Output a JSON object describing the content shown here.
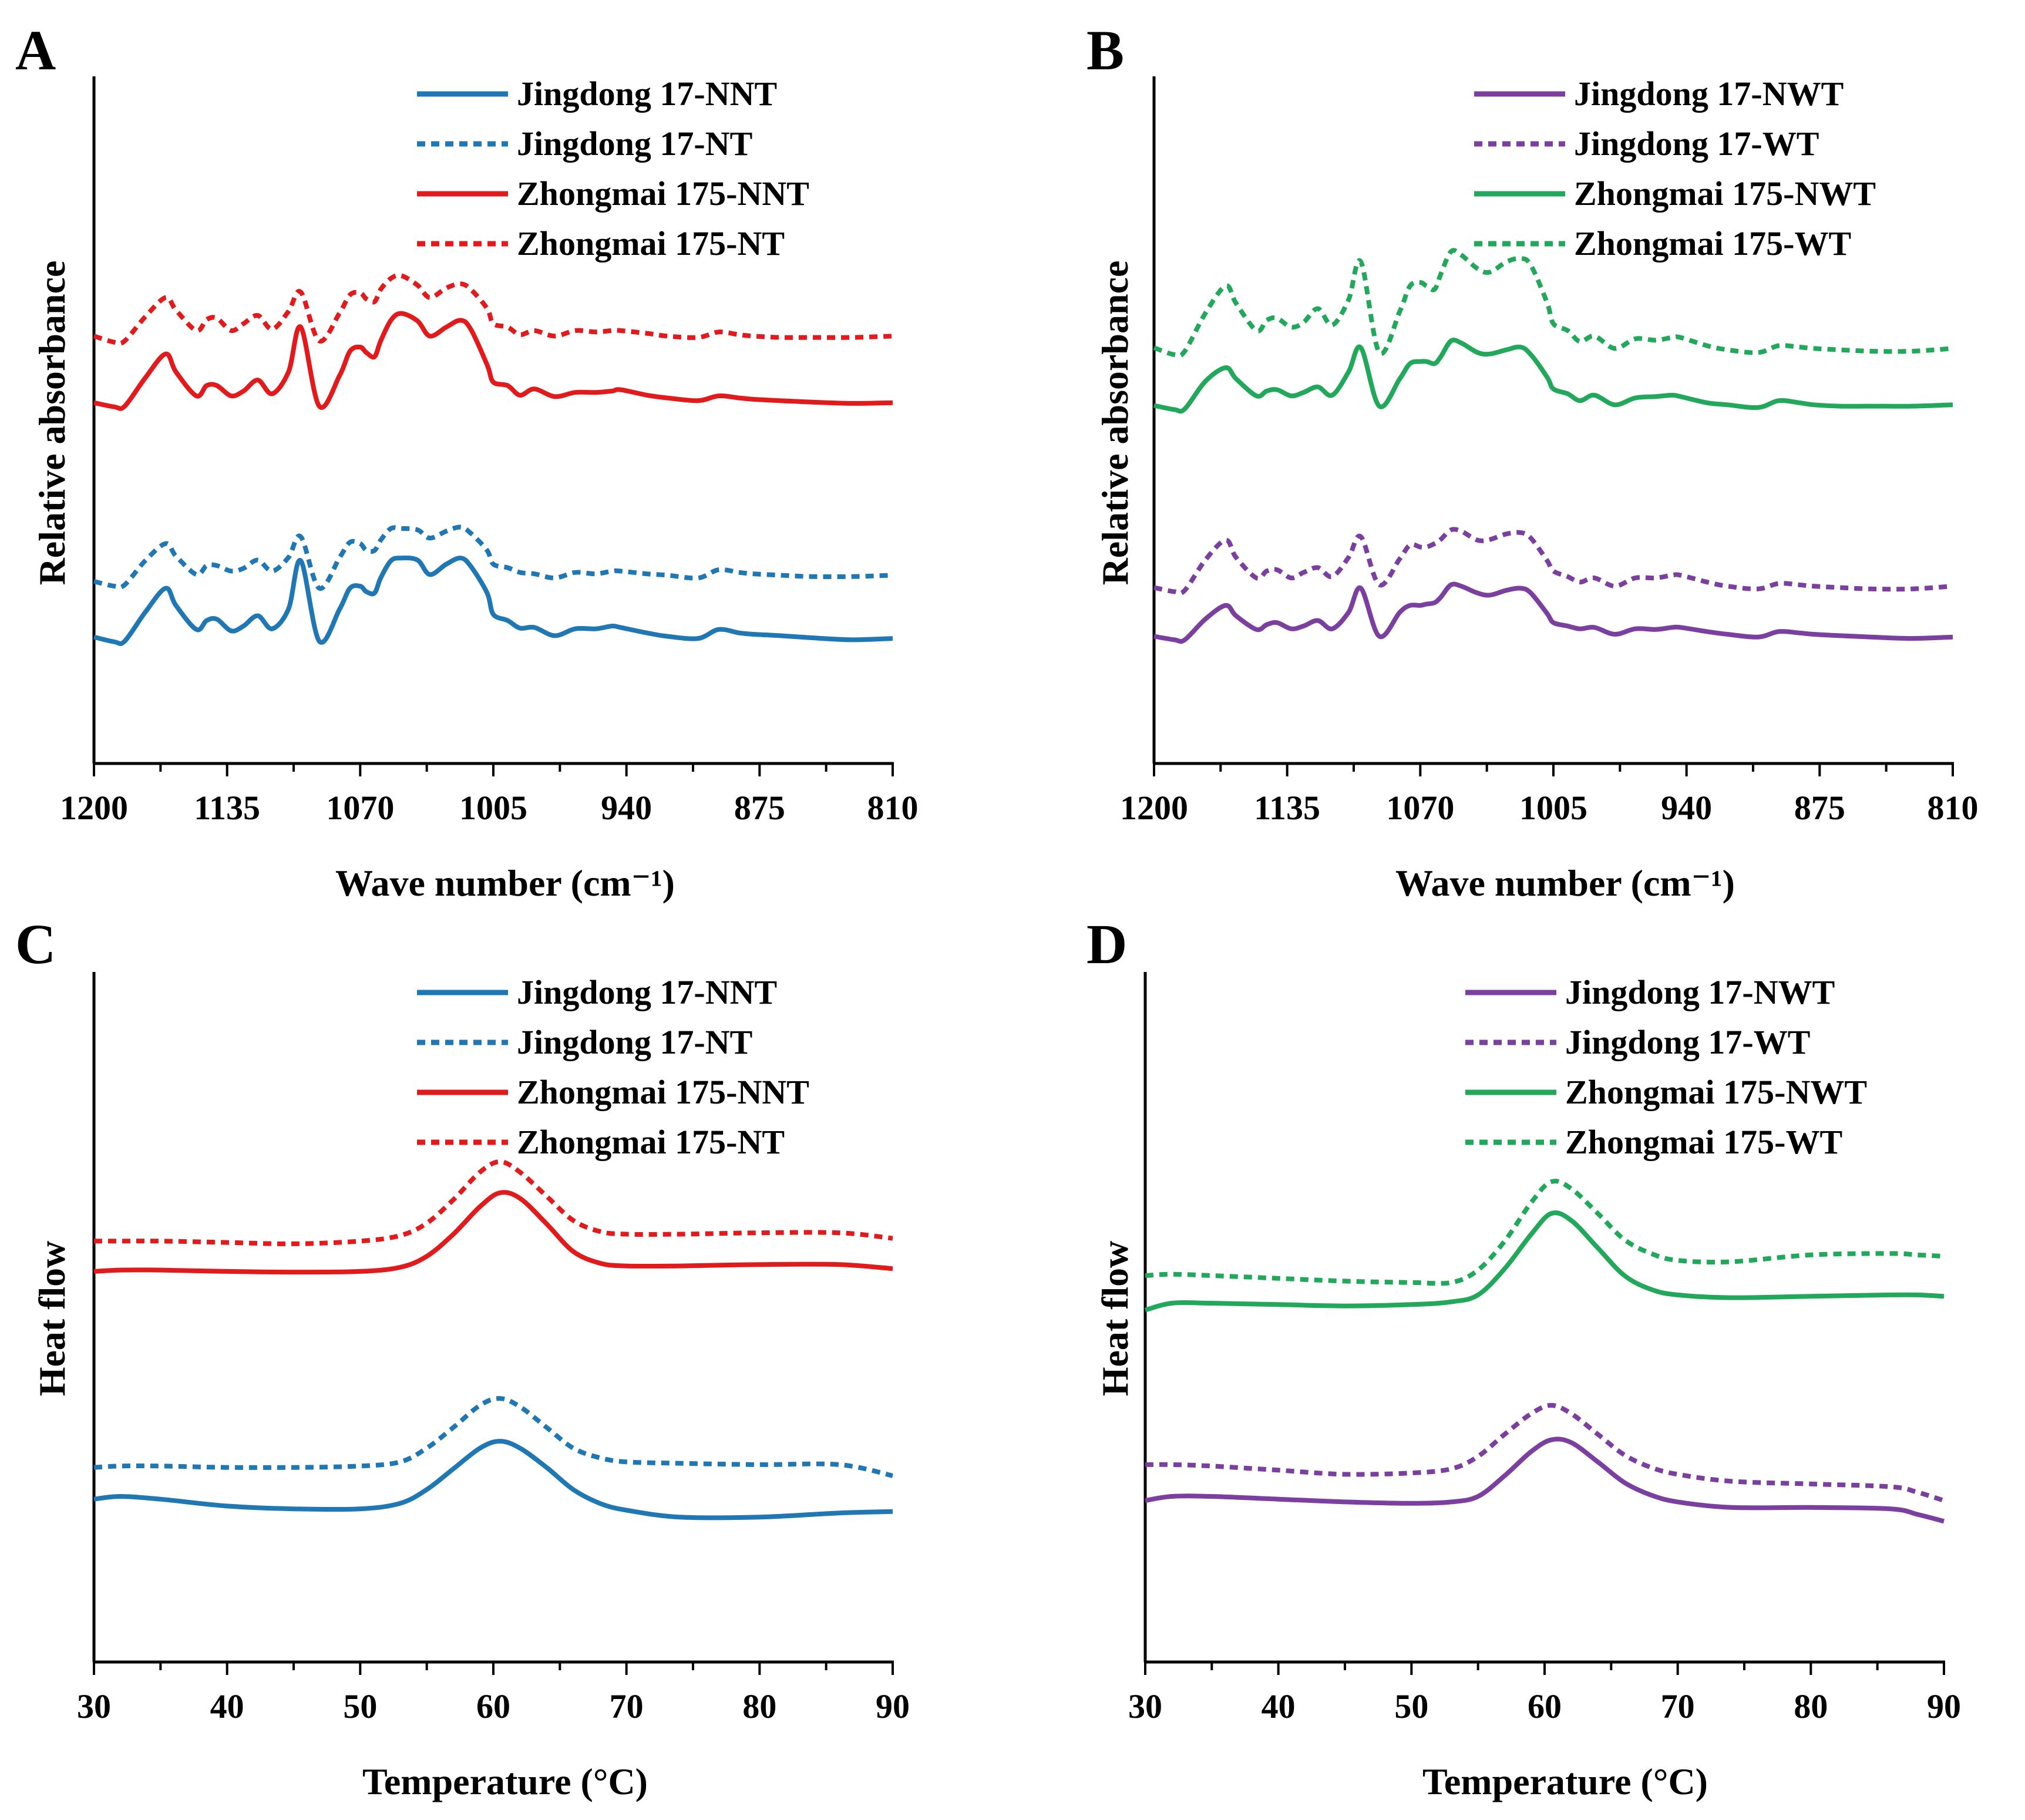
{
  "chart_data": [
    {
      "panel": "A",
      "type": "line",
      "xlabel": "Wave number (cm⁻¹)",
      "ylabel": "Relative absorbance",
      "xlim": [
        1200,
        810
      ],
      "x_ticks": [
        "1200",
        "1135",
        "1070",
        "1005",
        "940",
        "875",
        "810"
      ],
      "x_tick_values": [
        1200,
        1135,
        1070,
        1005,
        940,
        875,
        810
      ],
      "ylim": [
        0,
        10
      ],
      "y_ticks_shown": false,
      "legend_position": "top-right",
      "x": [
        1200,
        1190,
        1185,
        1175,
        1165,
        1160,
        1150,
        1145,
        1140,
        1133,
        1127,
        1120,
        1113,
        1105,
        1099,
        1090,
        1080,
        1075,
        1070,
        1067,
        1063,
        1060,
        1055,
        1050,
        1042,
        1036,
        1028,
        1021,
        1016,
        1008,
        1005,
        998,
        992,
        985,
        975,
        965,
        955,
        947,
        943,
        930,
        920,
        905,
        895,
        885,
        878,
        865,
        850,
        830,
        810
      ],
      "series": [
        {
          "name": "Jingdong 17-NNT",
          "color": "#1f77b4",
          "dash": "solid",
          "values": [
            1.84,
            1.77,
            1.78,
            2.2,
            2.55,
            2.3,
            1.95,
            2.08,
            2.1,
            1.93,
            2.0,
            2.15,
            1.96,
            2.25,
            2.95,
            1.78,
            2.25,
            2.55,
            2.58,
            2.5,
            2.48,
            2.7,
            2.95,
            2.99,
            2.96,
            2.75,
            2.9,
            2.99,
            2.87,
            2.48,
            2.17,
            2.08,
            1.97,
            1.98,
            1.86,
            1.96,
            1.96,
            2.0,
            1.98,
            1.9,
            1.85,
            1.82,
            1.95,
            1.9,
            1.88,
            1.86,
            1.83,
            1.8,
            1.82
          ]
        },
        {
          "name": "Jingdong 17-NT",
          "color": "#1f77b4",
          "dash": "dotted",
          "values": [
            2.65,
            2.58,
            2.6,
            2.95,
            3.2,
            3.02,
            2.75,
            2.88,
            2.88,
            2.8,
            2.84,
            2.96,
            2.8,
            3.0,
            3.3,
            2.55,
            3.0,
            3.22,
            3.2,
            3.1,
            3.1,
            3.25,
            3.42,
            3.42,
            3.4,
            3.28,
            3.38,
            3.44,
            3.35,
            3.1,
            2.9,
            2.85,
            2.78,
            2.76,
            2.7,
            2.78,
            2.76,
            2.8,
            2.8,
            2.76,
            2.74,
            2.7,
            2.82,
            2.78,
            2.76,
            2.74,
            2.72,
            2.72,
            2.74
          ]
        },
        {
          "name": "Zhongmai 175-NNT",
          "color": "#e31a1c",
          "dash": "solid",
          "values": [
            5.25,
            5.19,
            5.2,
            5.61,
            5.96,
            5.7,
            5.35,
            5.5,
            5.5,
            5.35,
            5.42,
            5.58,
            5.38,
            5.7,
            6.35,
            5.2,
            5.65,
            6.0,
            6.06,
            5.98,
            5.92,
            6.15,
            6.45,
            6.55,
            6.44,
            6.22,
            6.35,
            6.45,
            6.32,
            5.8,
            5.55,
            5.5,
            5.36,
            5.45,
            5.34,
            5.4,
            5.4,
            5.42,
            5.44,
            5.36,
            5.32,
            5.28,
            5.35,
            5.32,
            5.3,
            5.28,
            5.26,
            5.24,
            5.25
          ]
        },
        {
          "name": "Zhongmai 175-NT",
          "color": "#e31a1c",
          "dash": "dotted",
          "values": [
            6.22,
            6.13,
            6.15,
            6.5,
            6.78,
            6.6,
            6.3,
            6.46,
            6.48,
            6.3,
            6.4,
            6.52,
            6.32,
            6.58,
            6.86,
            6.15,
            6.56,
            6.82,
            6.85,
            6.76,
            6.72,
            6.9,
            7.06,
            7.1,
            6.96,
            6.78,
            6.92,
            6.98,
            6.9,
            6.62,
            6.4,
            6.35,
            6.24,
            6.3,
            6.22,
            6.3,
            6.28,
            6.3,
            6.3,
            6.26,
            6.22,
            6.2,
            6.28,
            6.24,
            6.22,
            6.2,
            6.2,
            6.2,
            6.22
          ]
        }
      ]
    },
    {
      "panel": "B",
      "type": "line",
      "xlabel": "Wave number (cm⁻¹)",
      "ylabel": "Relative absorbance",
      "xlim": [
        1200,
        810
      ],
      "x_ticks": [
        "1200",
        "1135",
        "1070",
        "1005",
        "940",
        "875",
        "810"
      ],
      "x_tick_values": [
        1200,
        1135,
        1070,
        1005,
        940,
        875,
        810
      ],
      "ylim": [
        0,
        10
      ],
      "y_ticks_shown": false,
      "legend_position": "top-right",
      "x": [
        1200,
        1190,
        1185,
        1175,
        1165,
        1160,
        1150,
        1145,
        1140,
        1133,
        1127,
        1120,
        1113,
        1105,
        1099,
        1090,
        1080,
        1075,
        1070,
        1067,
        1063,
        1060,
        1055,
        1050,
        1042,
        1036,
        1028,
        1021,
        1016,
        1008,
        1005,
        998,
        992,
        985,
        975,
        965,
        955,
        947,
        943,
        930,
        920,
        905,
        895,
        885,
        878,
        865,
        850,
        830,
        810
      ],
      "series": [
        {
          "name": "Jingdong 17-NWT",
          "color": "#7b3fa0",
          "dash": "solid",
          "values": [
            1.85,
            1.8,
            1.8,
            2.1,
            2.3,
            2.15,
            1.95,
            2.02,
            2.05,
            1.96,
            2.0,
            2.08,
            1.96,
            2.2,
            2.55,
            1.85,
            2.2,
            2.3,
            2.3,
            2.32,
            2.34,
            2.42,
            2.6,
            2.58,
            2.48,
            2.45,
            2.52,
            2.55,
            2.48,
            2.18,
            2.05,
            2.0,
            1.96,
            1.98,
            1.88,
            1.96,
            1.95,
            1.98,
            1.98,
            1.92,
            1.88,
            1.84,
            1.92,
            1.9,
            1.88,
            1.86,
            1.84,
            1.82,
            1.84
          ]
        },
        {
          "name": "Jingdong 17-WT",
          "color": "#7b3fa0",
          "dash": "dotted",
          "values": [
            2.56,
            2.5,
            2.52,
            2.96,
            3.25,
            3.0,
            2.7,
            2.8,
            2.82,
            2.7,
            2.78,
            2.85,
            2.72,
            3.0,
            3.3,
            2.6,
            2.98,
            3.18,
            3.15,
            3.15,
            3.2,
            3.26,
            3.4,
            3.38,
            3.25,
            3.26,
            3.34,
            3.36,
            3.28,
            2.95,
            2.8,
            2.72,
            2.64,
            2.7,
            2.58,
            2.7,
            2.7,
            2.74,
            2.74,
            2.64,
            2.58,
            2.54,
            2.62,
            2.6,
            2.58,
            2.56,
            2.54,
            2.54,
            2.58
          ]
        },
        {
          "name": "Zhongmai 175-NWT",
          "color": "#22a85a",
          "dash": "solid",
          "values": [
            5.21,
            5.15,
            5.16,
            5.56,
            5.76,
            5.6,
            5.35,
            5.42,
            5.44,
            5.35,
            5.4,
            5.48,
            5.36,
            5.7,
            6.05,
            5.2,
            5.6,
            5.82,
            5.85,
            5.85,
            5.82,
            5.92,
            6.15,
            6.12,
            5.98,
            5.96,
            6.02,
            6.06,
            5.95,
            5.62,
            5.45,
            5.38,
            5.28,
            5.36,
            5.22,
            5.32,
            5.34,
            5.36,
            5.34,
            5.25,
            5.22,
            5.18,
            5.28,
            5.25,
            5.22,
            5.2,
            5.2,
            5.2,
            5.22
          ]
        },
        {
          "name": "Zhongmai 175-WT",
          "color": "#22a85a",
          "dash": "dotted",
          "values": [
            6.05,
            5.95,
            6.0,
            6.55,
            6.95,
            6.7,
            6.3,
            6.45,
            6.48,
            6.35,
            6.42,
            6.62,
            6.38,
            6.75,
            7.3,
            5.98,
            6.58,
            6.95,
            7.0,
            6.95,
            6.9,
            7.12,
            7.45,
            7.4,
            7.2,
            7.15,
            7.3,
            7.35,
            7.25,
            6.7,
            6.4,
            6.3,
            6.14,
            6.22,
            6.04,
            6.18,
            6.16,
            6.2,
            6.2,
            6.08,
            6.02,
            5.98,
            6.08,
            6.06,
            6.04,
            6.02,
            6.0,
            6.0,
            6.04
          ]
        }
      ]
    },
    {
      "panel": "C",
      "type": "line",
      "xlabel": "Temperature (°C)",
      "ylabel": "Heat flow",
      "xlim": [
        30,
        90
      ],
      "x_ticks": [
        "30",
        "40",
        "50",
        "60",
        "70",
        "80",
        "90"
      ],
      "x_tick_values": [
        30,
        40,
        50,
        60,
        70,
        80,
        90
      ],
      "ylim": [
        0,
        10
      ],
      "y_ticks_shown": false,
      "legend_position": "top-right",
      "x": [
        30,
        32,
        35,
        40,
        45,
        50,
        53,
        55,
        57,
        59,
        60.5,
        62,
        64,
        66,
        68,
        70,
        74,
        80,
        86,
        90
      ],
      "series": [
        {
          "name": "Jingdong 17-NNT",
          "color": "#1f77b4",
          "dash": "solid",
          "values": [
            2.36,
            2.4,
            2.36,
            2.26,
            2.22,
            2.22,
            2.3,
            2.5,
            2.8,
            3.1,
            3.2,
            3.1,
            2.82,
            2.5,
            2.3,
            2.2,
            2.1,
            2.1,
            2.16,
            2.18
          ]
        },
        {
          "name": "Jingdong 17-NT",
          "color": "#1f77b4",
          "dash": "dotted",
          "values": [
            2.82,
            2.84,
            2.84,
            2.82,
            2.82,
            2.84,
            2.9,
            3.1,
            3.4,
            3.72,
            3.82,
            3.7,
            3.4,
            3.1,
            2.96,
            2.9,
            2.88,
            2.86,
            2.86,
            2.7
          ]
        },
        {
          "name": "Zhongmai 175-NNT",
          "color": "#e31a1c",
          "dash": "solid",
          "values": [
            5.66,
            5.68,
            5.68,
            5.66,
            5.65,
            5.66,
            5.72,
            5.88,
            6.2,
            6.6,
            6.8,
            6.72,
            6.35,
            5.95,
            5.78,
            5.74,
            5.74,
            5.76,
            5.76,
            5.7
          ]
        },
        {
          "name": "Zhongmai 175-NT",
          "color": "#e31a1c",
          "dash": "dotted",
          "values": [
            6.1,
            6.1,
            6.1,
            6.08,
            6.06,
            6.1,
            6.18,
            6.36,
            6.7,
            7.1,
            7.25,
            7.1,
            6.75,
            6.4,
            6.24,
            6.2,
            6.2,
            6.22,
            6.22,
            6.14
          ]
        }
      ]
    },
    {
      "panel": "D",
      "type": "line",
      "xlabel": "Temperature (°C)",
      "ylabel": "Heat flow",
      "xlim": [
        30,
        90
      ],
      "x_ticks": [
        "30",
        "40",
        "50",
        "60",
        "70",
        "80",
        "90"
      ],
      "x_tick_values": [
        30,
        40,
        50,
        60,
        70,
        80,
        90
      ],
      "ylim": [
        0,
        10
      ],
      "y_ticks_shown": false,
      "legend_position": "top-right",
      "x": [
        30,
        32,
        35,
        40,
        45,
        50,
        53,
        55,
        57,
        59,
        60.5,
        62,
        64,
        66,
        68,
        70,
        74,
        80,
        86,
        88,
        90
      ],
      "series": [
        {
          "name": "Jingdong 17-NWT",
          "color": "#7b3fa0",
          "dash": "solid",
          "values": [
            2.34,
            2.4,
            2.4,
            2.36,
            2.32,
            2.3,
            2.32,
            2.4,
            2.7,
            3.05,
            3.22,
            3.18,
            2.9,
            2.6,
            2.42,
            2.32,
            2.24,
            2.24,
            2.22,
            2.14,
            2.04
          ]
        },
        {
          "name": "Jingdong 17-WT",
          "color": "#7b3fa0",
          "dash": "dotted",
          "values": [
            2.86,
            2.86,
            2.84,
            2.78,
            2.72,
            2.74,
            2.8,
            2.98,
            3.3,
            3.6,
            3.72,
            3.6,
            3.3,
            3.0,
            2.82,
            2.72,
            2.62,
            2.58,
            2.54,
            2.46,
            2.34
          ]
        },
        {
          "name": "Zhongmai 175-NWT",
          "color": "#22a85a",
          "dash": "solid",
          "values": [
            5.1,
            5.2,
            5.2,
            5.18,
            5.16,
            5.18,
            5.22,
            5.32,
            5.7,
            6.2,
            6.5,
            6.4,
            6.0,
            5.6,
            5.4,
            5.32,
            5.28,
            5.3,
            5.32,
            5.32,
            5.3
          ]
        },
        {
          "name": "Zhongmai 175-WT",
          "color": "#22a85a",
          "dash": "dotted",
          "values": [
            5.6,
            5.62,
            5.6,
            5.56,
            5.52,
            5.5,
            5.5,
            5.68,
            6.1,
            6.66,
            6.96,
            6.86,
            6.5,
            6.12,
            5.92,
            5.82,
            5.8,
            5.9,
            5.92,
            5.9,
            5.88
          ]
        }
      ]
    }
  ]
}
